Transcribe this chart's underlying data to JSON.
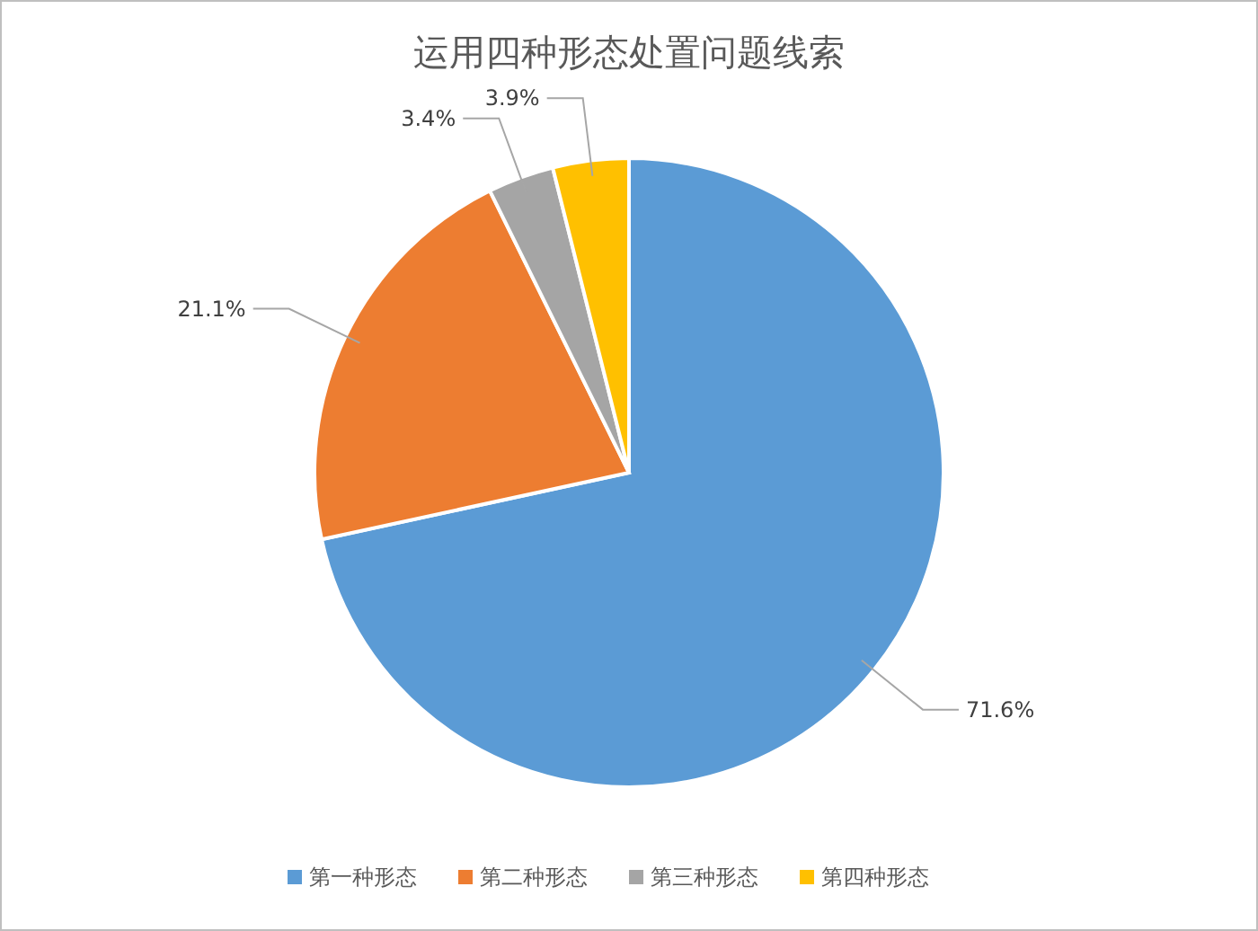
{
  "chart_data": {
    "type": "pie",
    "title": "运用四种形态处置问题线索",
    "categories": [
      "第一种形态",
      "第二种形态",
      "第三种形态",
      "第四种形态"
    ],
    "values": [
      71.6,
      21.1,
      3.4,
      3.9
    ],
    "colors": [
      "#5b9bd5",
      "#ed7d31",
      "#a5a5a5",
      "#ffc000"
    ],
    "value_labels": [
      "71.6%",
      "21.1%",
      "3.4%",
      "3.9%"
    ],
    "legend": "bottom"
  }
}
